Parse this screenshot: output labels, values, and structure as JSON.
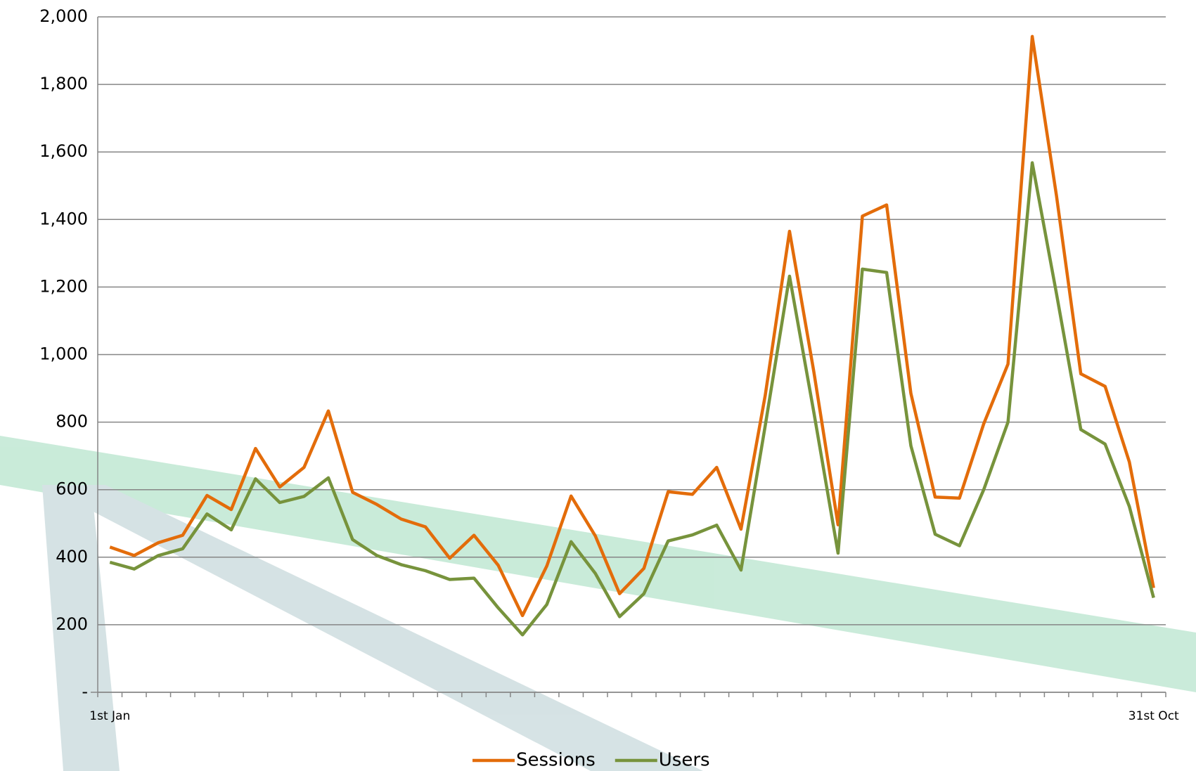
{
  "chart_data": {
    "type": "line",
    "categories": [
      "1st Jan",
      null,
      null,
      null,
      null,
      null,
      null,
      null,
      null,
      null,
      null,
      null,
      null,
      null,
      null,
      null,
      null,
      null,
      null,
      null,
      null,
      null,
      null,
      null,
      null,
      null,
      null,
      null,
      null,
      null,
      null,
      null,
      null,
      null,
      null,
      null,
      null,
      null,
      null,
      null,
      null,
      null,
      null,
      "31st Oct"
    ],
    "series": [
      {
        "name": "Sessions",
        "color": "#e36c0a",
        "values": [
          430,
          405,
          443,
          465,
          583,
          541,
          722,
          608,
          666,
          833,
          592,
          556,
          513,
          490,
          397,
          465,
          376,
          227,
          374,
          581,
          463,
          292,
          367,
          594,
          586,
          666,
          483,
          880,
          1365,
          950,
          496,
          1410,
          1443,
          885,
          578,
          575,
          795,
          972,
          1942,
          1470,
          943,
          906,
          682,
          309
        ]
      },
      {
        "name": "Users",
        "color": "#77933c",
        "values": [
          385,
          365,
          405,
          425,
          528,
          481,
          632,
          562,
          580,
          635,
          452,
          405,
          378,
          360,
          334,
          338,
          250,
          170,
          260,
          446,
          352,
          224,
          292,
          448,
          466,
          495,
          362,
          790,
          1232,
          830,
          412,
          1253,
          1243,
          730,
          468,
          434,
          600,
          800,
          1568,
          1180,
          778,
          735,
          550,
          280
        ]
      }
    ],
    "ylim": [
      0,
      2000
    ],
    "yticks": [
      {
        "value": 0,
        "label": "-"
      },
      200,
      400,
      600,
      800,
      {
        "value": 1000,
        "label": "1,000"
      },
      {
        "value": 1200,
        "label": "1,200"
      },
      {
        "value": 1400,
        "label": "1,400"
      },
      {
        "value": 1600,
        "label": "1,600"
      },
      {
        "value": 1800,
        "label": "1,800"
      },
      {
        "value": 2000,
        "label": "2,000"
      }
    ],
    "grid": true,
    "legend": "bottom"
  }
}
